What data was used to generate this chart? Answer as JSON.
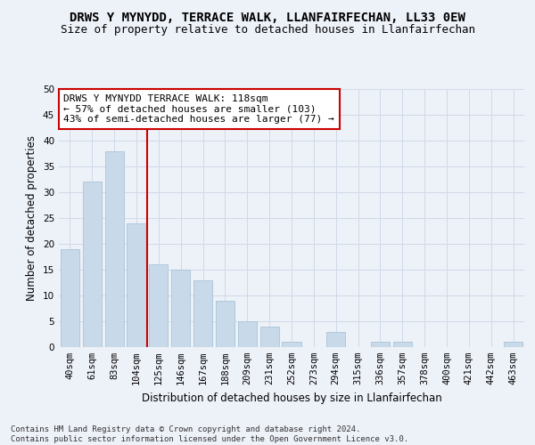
{
  "title": "DRWS Y MYNYDD, TERRACE WALK, LLANFAIRFECHAN, LL33 0EW",
  "subtitle": "Size of property relative to detached houses in Llanfairfechan",
  "xlabel": "Distribution of detached houses by size in Llanfairfechan",
  "ylabel": "Number of detached properties",
  "footnote": "Contains HM Land Registry data © Crown copyright and database right 2024.\nContains public sector information licensed under the Open Government Licence v3.0.",
  "categories": [
    "40sqm",
    "61sqm",
    "83sqm",
    "104sqm",
    "125sqm",
    "146sqm",
    "167sqm",
    "188sqm",
    "209sqm",
    "231sqm",
    "252sqm",
    "273sqm",
    "294sqm",
    "315sqm",
    "336sqm",
    "357sqm",
    "378sqm",
    "400sqm",
    "421sqm",
    "442sqm",
    "463sqm"
  ],
  "values": [
    19,
    32,
    38,
    24,
    16,
    15,
    13,
    9,
    5,
    4,
    1,
    0,
    3,
    0,
    1,
    1,
    0,
    0,
    0,
    0,
    1
  ],
  "bar_color": "#c8daea",
  "bar_edge_color": "#a8c4d8",
  "red_line_index": 4,
  "red_line_color": "#cc0000",
  "annotation_text": "DRWS Y MYNYDD TERRACE WALK: 118sqm\n← 57% of detached houses are smaller (103)\n43% of semi-detached houses are larger (77) →",
  "annotation_box_color": "#ffffff",
  "annotation_box_edge_color": "#cc0000",
  "ylim": [
    0,
    50
  ],
  "yticks": [
    0,
    5,
    10,
    15,
    20,
    25,
    30,
    35,
    40,
    45,
    50
  ],
  "grid_color": "#d0dae8",
  "background_color": "#edf1f8",
  "title_fontsize": 10,
  "subtitle_fontsize": 9,
  "axis_label_fontsize": 8.5,
  "tick_fontsize": 7.5,
  "annotation_fontsize": 8,
  "footnote_fontsize": 6.5
}
